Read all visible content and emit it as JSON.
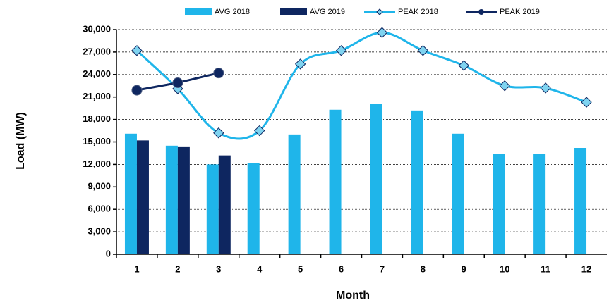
{
  "chart_data": {
    "type": "bar-line",
    "x_label": "Month",
    "y_label": "Load (MW)",
    "categories": [
      "1",
      "2",
      "3",
      "4",
      "5",
      "6",
      "7",
      "8",
      "9",
      "10",
      "11",
      "12"
    ],
    "series": [
      {
        "name": "AVG 2018",
        "type": "bar",
        "color": "#1fb5ea",
        "values": [
          16100,
          14500,
          12000,
          12200,
          16000,
          19300,
          20100,
          19200,
          16100,
          13400,
          13400,
          14200
        ]
      },
      {
        "name": "AVG 2019",
        "type": "bar",
        "color": "#0e2660",
        "values": [
          15200,
          14400,
          13200,
          null,
          null,
          null,
          null,
          null,
          null,
          null,
          null,
          null
        ]
      },
      {
        "name": "PEAK 2018",
        "type": "line",
        "smooth": true,
        "marker": "diamond",
        "color": "#1fb5ea",
        "values": [
          27200,
          22100,
          16200,
          16500,
          25400,
          27200,
          29600,
          27200,
          25200,
          22500,
          22200,
          20300
        ]
      },
      {
        "name": "PEAK 2019",
        "type": "line",
        "marker": "circle",
        "color": "#0e2660",
        "values": [
          21900,
          22900,
          24200,
          null,
          null,
          null,
          null,
          null,
          null,
          null,
          null,
          null
        ]
      }
    ],
    "ylim": [
      0,
      30000
    ],
    "yticks": [
      0,
      {
        "value": 3000,
        "label": "3,000"
      },
      {
        "value": 6000,
        "label": "6,000"
      },
      {
        "value": 9000,
        "label": "9,000"
      },
      {
        "value": 12000,
        "label": "12,000"
      },
      {
        "value": 15000,
        "label": "15,000"
      },
      {
        "value": 18000,
        "label": "18,000"
      },
      {
        "value": 21000,
        "label": "21,000"
      },
      {
        "value": 24000,
        "label": "24,000"
      },
      {
        "value": 27000,
        "label": "27,000"
      },
      {
        "value": 30000,
        "label": "30,000"
      }
    ],
    "grid": true,
    "legend": "top"
  }
}
